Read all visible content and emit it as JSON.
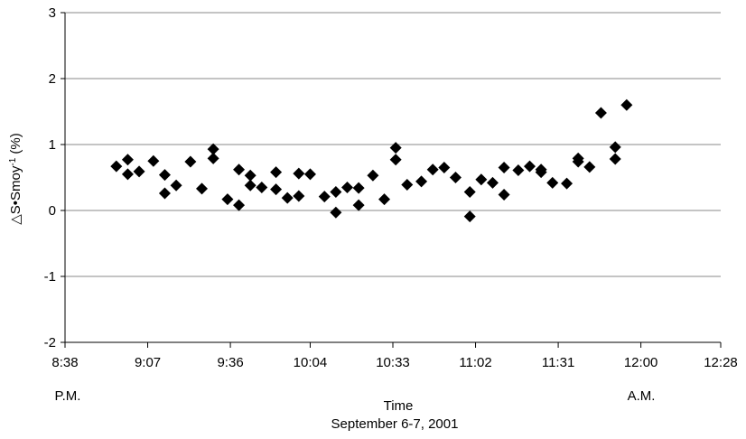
{
  "chart_data": {
    "type": "scatter",
    "xlabel": "Time",
    "xlabel_sub": "September 6-7, 2001",
    "ylabel": "△S•Smoy",
    "ylabel_sup": "-1",
    "ylabel_suffix": " (%)",
    "x_day_labels": {
      "start": "P.M.",
      "end": "A.M."
    },
    "x_unit": "minutes after 8:38 P.M.",
    "xlim": [
      0,
      230
    ],
    "ylim": [
      -2,
      3
    ],
    "x_ticks": [
      {
        "value": 0,
        "label": "8:38"
      },
      {
        "value": 29,
        "label": "9:07"
      },
      {
        "value": 58,
        "label": "9:36"
      },
      {
        "value": 86,
        "label": "10:04"
      },
      {
        "value": 115,
        "label": "10:33"
      },
      {
        "value": 144,
        "label": "11:02"
      },
      {
        "value": 173,
        "label": "11:31"
      },
      {
        "value": 202,
        "label": "12:00"
      },
      {
        "value": 230,
        "label": "12:28"
      }
    ],
    "y_ticks": [
      -2,
      -1,
      0,
      1,
      2,
      3
    ],
    "grid": {
      "horizontal": true,
      "vertical": false
    },
    "marker": "diamond",
    "series": [
      {
        "color": "#000000",
        "points": [
          [
            18,
            0.67
          ],
          [
            22,
            0.77
          ],
          [
            22,
            0.55
          ],
          [
            26,
            0.59
          ],
          [
            31,
            0.75
          ],
          [
            35,
            0.26
          ],
          [
            35,
            0.54
          ],
          [
            39,
            0.38
          ],
          [
            44,
            0.74
          ],
          [
            48,
            0.33
          ],
          [
            52,
            0.93
          ],
          [
            52,
            0.79
          ],
          [
            57,
            0.17
          ],
          [
            61,
            0.62
          ],
          [
            61,
            0.08
          ],
          [
            65,
            0.38
          ],
          [
            65,
            0.53
          ],
          [
            69,
            0.35
          ],
          [
            74,
            0.32
          ],
          [
            74,
            0.58
          ],
          [
            78,
            0.19
          ],
          [
            82,
            0.56
          ],
          [
            82,
            0.22
          ],
          [
            86,
            0.55
          ],
          [
            91,
            0.21
          ],
          [
            95,
            0.28
          ],
          [
            95,
            -0.03
          ],
          [
            99,
            0.35
          ],
          [
            103,
            0.34
          ],
          [
            103,
            0.08
          ],
          [
            108,
            0.53
          ],
          [
            112,
            0.17
          ],
          [
            116,
            0.95
          ],
          [
            116,
            0.77
          ],
          [
            120,
            0.39
          ],
          [
            125,
            0.44
          ],
          [
            129,
            0.62
          ],
          [
            133,
            0.65
          ],
          [
            137,
            0.5
          ],
          [
            142,
            0.28
          ],
          [
            142,
            -0.09
          ],
          [
            146,
            0.47
          ],
          [
            150,
            0.42
          ],
          [
            154,
            0.65
          ],
          [
            154,
            0.24
          ],
          [
            159,
            0.61
          ],
          [
            163,
            0.67
          ],
          [
            167,
            0.62
          ],
          [
            167,
            0.58
          ],
          [
            171,
            0.42
          ],
          [
            176,
            0.41
          ],
          [
            180,
            0.79
          ],
          [
            180,
            0.74
          ],
          [
            184,
            0.66
          ],
          [
            188,
            1.48
          ],
          [
            193,
            0.96
          ],
          [
            193,
            0.78
          ],
          [
            197,
            1.6
          ]
        ]
      }
    ]
  }
}
